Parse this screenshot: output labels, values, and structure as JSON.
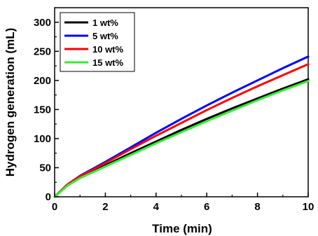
{
  "chart_data": {
    "type": "line",
    "title": "",
    "xlabel": "Time (min)",
    "ylabel": "Hydrogen generation (mL)",
    "xlim": [
      0,
      10
    ],
    "ylim": [
      0,
      325
    ],
    "xticks": [
      0,
      2,
      4,
      6,
      8,
      10
    ],
    "yticks": [
      0,
      50,
      100,
      150,
      200,
      250,
      300
    ],
    "grid": false,
    "legend": "top-left",
    "x": [
      0,
      0.5,
      1,
      2,
      3,
      4,
      5,
      6,
      7,
      8,
      9,
      10
    ],
    "series": [
      {
        "name": "1 wt%",
        "color": "#000000",
        "values": [
          0,
          20,
          33,
          54,
          75,
          95,
          115,
          134,
          152,
          169,
          186,
          202
        ]
      },
      {
        "name": "5 wt%",
        "color": "#0000ff",
        "values": [
          0,
          21,
          36,
          60,
          85,
          110,
          134,
          157,
          179,
          200,
          221,
          241
        ]
      },
      {
        "name": "10 wt%",
        "color": "#ff0000",
        "values": [
          0,
          21,
          35,
          58,
          82,
          105,
          127,
          149,
          170,
          190,
          209,
          228
        ]
      },
      {
        "name": "15 wt%",
        "color": "#33ee33",
        "values": [
          0,
          19,
          32,
          52,
          72,
          92,
          111,
          130,
          148,
          166,
          183,
          199
        ]
      }
    ]
  }
}
